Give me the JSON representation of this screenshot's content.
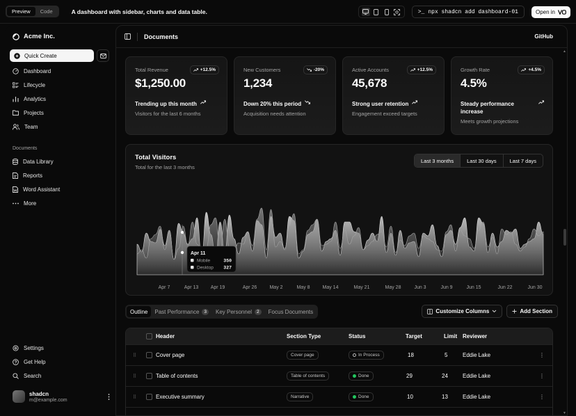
{
  "topbar": {
    "tabs": [
      "Preview",
      "Code"
    ],
    "description": "A dashboard with sidebar, charts and data table.",
    "command": "npx shadcn add dashboard-01",
    "open_in": "Open in"
  },
  "sidebar": {
    "brand": "Acme Inc.",
    "quick_create": "Quick Create",
    "main_items": [
      "Dashboard",
      "Lifecycle",
      "Analytics",
      "Projects",
      "Team"
    ],
    "documents_label": "Documents",
    "doc_items": [
      "Data Library",
      "Reports",
      "Word Assistant",
      "More"
    ],
    "bottom_items": [
      "Settings",
      "Get Help",
      "Search"
    ],
    "user": {
      "name": "shadcn",
      "email": "m@example.com"
    }
  },
  "header": {
    "title": "Documents",
    "github": "GitHub"
  },
  "cards": [
    {
      "label": "Total Revenue",
      "value": "$1,250.00",
      "badge": "+12.5%",
      "trend": "up",
      "footer_main": "Trending up this month",
      "footer_sub": "Visitors for the last 6 months"
    },
    {
      "label": "New Customers",
      "value": "1,234",
      "badge": "-20%",
      "trend": "down",
      "footer_main": "Down 20% this period",
      "footer_sub": "Acquisition needs attention"
    },
    {
      "label": "Active Accounts",
      "value": "45,678",
      "badge": "+12.5%",
      "trend": "up",
      "footer_main": "Strong user retention",
      "footer_sub": "Engagement exceed targets"
    },
    {
      "label": "Growth Rate",
      "value": "4.5%",
      "badge": "+4.5%",
      "trend": "up",
      "footer_main": "Steady performance increase",
      "footer_sub": "Meets growth projections"
    }
  ],
  "visitors": {
    "title": "Total Visitors",
    "subtitle": "Total for the last 3 months",
    "ranges": [
      "Last 3 months",
      "Last 30 days",
      "Last 7 days"
    ],
    "tooltip": {
      "date": "Apr 11",
      "rows": [
        {
          "name": "Mobile",
          "value": "350"
        },
        {
          "name": "Desktop",
          "value": "327"
        }
      ]
    }
  },
  "chart_data": {
    "type": "area",
    "x_tick_labels": [
      "Apr 7",
      "Apr 13",
      "Apr 19",
      "Apr 26",
      "May 2",
      "May 8",
      "May 14",
      "May 21",
      "May 28",
      "Jun 3",
      "Jun 9",
      "Jun 15",
      "Jun 22",
      "Jun 30"
    ],
    "grid": false,
    "series": [
      {
        "name": "Desktop",
        "values": [
          220,
          165,
          300,
          240,
          230,
          327,
          210,
          320,
          110,
          370,
          300,
          220,
          260,
          410,
          120,
          450,
          290,
          140,
          380,
          160,
          430,
          260,
          150,
          270,
          310,
          170,
          390,
          360,
          120,
          420,
          270,
          300,
          180,
          420,
          390,
          120,
          170,
          290,
          310,
          400,
          170,
          240,
          260,
          320,
          140,
          380,
          380,
          310,
          300,
          180,
          250,
          300,
          240,
          420,
          160,
          300,
          140,
          320,
          190,
          230,
          240,
          130,
          300,
          280,
          360,
          210,
          130,
          290,
          320,
          220,
          340,
          410,
          200,
          170,
          410,
          370,
          160,
          300,
          200,
          240,
          320,
          300,
          330,
          190,
          220,
          240,
          260,
          380,
          290
        ]
      },
      {
        "name": "Mobile",
        "values": [
          150,
          180,
          120,
          260,
          290,
          350,
          180,
          320,
          110,
          190,
          350,
          210,
          380,
          220,
          170,
          190,
          360,
          410,
          180,
          400,
          200,
          170,
          230,
          220,
          300,
          210,
          400,
          480,
          180,
          470,
          200,
          240,
          190,
          350,
          440,
          150,
          180,
          320,
          360,
          400,
          210,
          220,
          240,
          380,
          190,
          320,
          220,
          280,
          340,
          180,
          210,
          240,
          290,
          310,
          200,
          350,
          160,
          250,
          210,
          280,
          300,
          190,
          280,
          260,
          240,
          180,
          170,
          310,
          360,
          170,
          320,
          280,
          260,
          190,
          320,
          380,
          200,
          270,
          150,
          330,
          290,
          310,
          220,
          170,
          200,
          260,
          330,
          280,
          310
        ]
      }
    ]
  },
  "table_tabs": [
    {
      "label": "Outline",
      "count": ""
    },
    {
      "label": "Past Performance",
      "count": "3"
    },
    {
      "label": "Key Personnel",
      "count": "2"
    },
    {
      "label": "Focus Documents",
      "count": ""
    }
  ],
  "table_actions": {
    "customize": "Customize Columns",
    "add": "Add Section"
  },
  "table": {
    "columns": [
      "Header",
      "Section Type",
      "Status",
      "Target",
      "Limit",
      "Reviewer"
    ],
    "rows": [
      {
        "header": "Cover page",
        "type": "Cover page",
        "status": "In Process",
        "target": "18",
        "limit": "5",
        "reviewer": "Eddie Lake"
      },
      {
        "header": "Table of contents",
        "type": "Table of contents",
        "status": "Done",
        "target": "29",
        "limit": "24",
        "reviewer": "Eddie Lake"
      },
      {
        "header": "Executive summary",
        "type": "Narrative",
        "status": "Done",
        "target": "10",
        "limit": "13",
        "reviewer": "Eddie Lake"
      }
    ]
  }
}
